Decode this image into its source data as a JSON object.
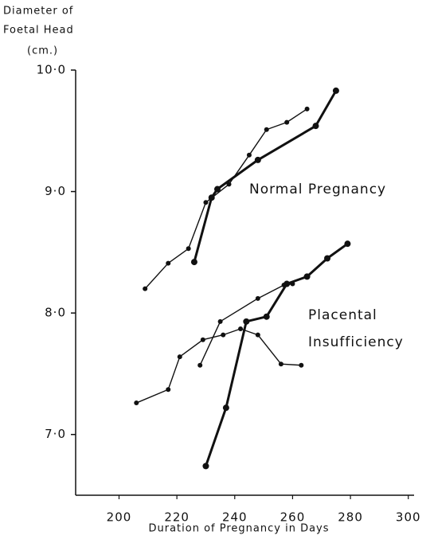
{
  "chart_data": {
    "type": "line",
    "y_label": [
      "Diameter of",
      "Foetal Head",
      "(cm.)"
    ],
    "x_label": "Duration of Pregnancy in Days",
    "annotations": [
      "Normal Pregnancy",
      "Placental",
      "Insufficiency"
    ],
    "xlim": [
      185,
      302
    ],
    "xticks": [
      200,
      220,
      240,
      260,
      280,
      300
    ],
    "ylim": [
      6.5,
      10.0
    ],
    "yticks": [
      {
        "value": 7.0,
        "label": "7·0"
      },
      {
        "value": 8.0,
        "label": "8·0"
      },
      {
        "value": 9.0,
        "label": "9·0"
      },
      {
        "value": 10.0,
        "label": "10·0"
      }
    ],
    "series": [
      {
        "color": "#111111",
        "line_width": 1.4,
        "marker_size": 3,
        "x": [
          209,
          217,
          224,
          230,
          238,
          245,
          251,
          258,
          265
        ],
        "values": [
          8.2,
          8.41,
          8.53,
          8.91,
          9.06,
          9.3,
          9.51,
          9.57,
          9.68
        ]
      },
      {
        "color": "#111111",
        "line_width": 3,
        "marker_size": 4,
        "x": [
          226,
          232,
          234,
          248,
          268,
          275
        ],
        "values": [
          8.42,
          8.95,
          9.02,
          9.26,
          9.54,
          9.83
        ]
      },
      {
        "color": "#111111",
        "line_width": 1.4,
        "marker_size": 3,
        "x": [
          228,
          235,
          248,
          257,
          260
        ],
        "values": [
          7.57,
          7.93,
          8.12,
          8.23,
          8.24
        ]
      },
      {
        "color": "#111111",
        "line_width": 1.4,
        "marker_size": 3,
        "x": [
          206,
          217,
          221,
          229,
          236,
          242,
          248,
          256,
          263
        ],
        "values": [
          7.26,
          7.37,
          7.64,
          7.78,
          7.82,
          7.87,
          7.82,
          7.58,
          7.57
        ]
      },
      {
        "color": "#111111",
        "line_width": 3,
        "marker_size": 4,
        "x": [
          230,
          237,
          244,
          251,
          258,
          265,
          272,
          279
        ],
        "values": [
          6.74,
          7.22,
          7.93,
          7.97,
          8.24,
          8.3,
          8.45,
          8.57
        ]
      }
    ]
  }
}
